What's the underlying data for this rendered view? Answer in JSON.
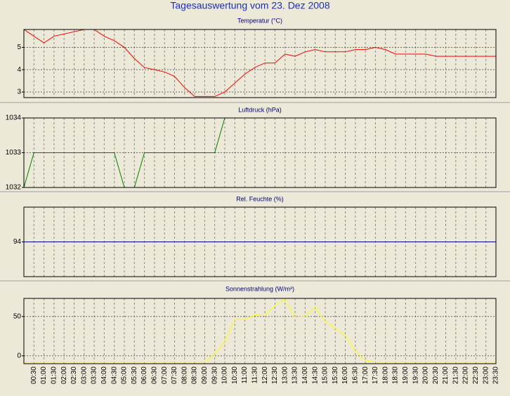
{
  "title": "Tagesauswertung vom 23. Dez 2008",
  "chart_data": [
    {
      "type": "line",
      "title": "Temperatur (°C)",
      "color": "#ff0000",
      "ylim": [
        2.75,
        5.8
      ],
      "yticks": [
        3,
        4,
        5
      ],
      "grid": true,
      "values": [
        5.8,
        5.5,
        5.2,
        5.5,
        5.6,
        5.7,
        5.8,
        5.8,
        5.5,
        5.3,
        5.0,
        4.5,
        4.1,
        4.0,
        3.9,
        3.7,
        3.2,
        2.8,
        2.8,
        2.8,
        3.0,
        3.4,
        3.8,
        4.1,
        4.3,
        4.3,
        4.7,
        4.6,
        4.8,
        4.9,
        4.8,
        4.8,
        4.8,
        4.9,
        4.9,
        5.0,
        4.9,
        4.7,
        4.7,
        4.7,
        4.7,
        4.6,
        4.6,
        4.6,
        4.6,
        4.6,
        4.6,
        4.6
      ]
    },
    {
      "type": "line",
      "title": "Luftdruck (hPa)",
      "color": "#008000",
      "ylim": [
        1032,
        1034
      ],
      "yticks": [
        1032,
        1033,
        1034
      ],
      "grid": true,
      "values": [
        1032,
        1033,
        1033,
        1033,
        1033,
        1033,
        1033,
        1033,
        1033,
        1033,
        1032,
        1032,
        1033,
        1033,
        1033,
        1033,
        1033,
        1033,
        1033,
        1033,
        1034,
        null,
        null,
        null,
        null,
        null,
        null,
        null,
        null,
        null,
        null,
        null,
        null,
        null,
        null,
        null,
        null,
        null,
        null,
        null,
        null,
        null,
        null,
        null,
        null,
        null,
        null,
        null
      ]
    },
    {
      "type": "line",
      "title": "Rel. Feuchte (%)",
      "color": "#00008b",
      "ylim": [
        93,
        95
      ],
      "yticks": [
        94
      ],
      "grid": true,
      "values": [
        94,
        94,
        94,
        94,
        94,
        94,
        94,
        94,
        94,
        94,
        94,
        94,
        94,
        94,
        94,
        94,
        94,
        94,
        94,
        94,
        94,
        94,
        94,
        94,
        94,
        94,
        94,
        94,
        94,
        94,
        94,
        94,
        94,
        94,
        94,
        94,
        94,
        94,
        94,
        94,
        94,
        94,
        94,
        94,
        94,
        94,
        94,
        94
      ]
    },
    {
      "type": "line",
      "title": "Sonnenstrahlung (W/m²)",
      "color": "#ffff00",
      "ylim": [
        -10,
        73
      ],
      "yticks": [
        0,
        50
      ],
      "grid": true,
      "categories": [
        null,
        "00:30",
        "01:00",
        "01:30",
        "02:00",
        "02:30",
        "03:00",
        "03:30",
        "04:00",
        "04:30",
        "05:00",
        "05:30",
        "06:00",
        "06:30",
        "07:00",
        "07:30",
        "08:00",
        "08:30",
        "09:00",
        "09:30",
        "10:00",
        "10:30",
        "11:00",
        "11:30",
        "12:00",
        "12:30",
        "13:00",
        "13:30",
        "14:00",
        "14:30",
        "15:00",
        "15:30",
        "16:00",
        "16:30",
        "17:00",
        "17:30",
        "18:00",
        "18:30",
        "19:00",
        "19:30",
        "20:00",
        "20:30",
        "21:00",
        "21:30",
        "22:00",
        "22:30",
        "23:00",
        "23:30"
      ],
      "values": [
        -8,
        -8,
        -8,
        -8,
        -8,
        -8,
        -8,
        -8,
        -8,
        -8,
        -8,
        -8,
        -8,
        -8,
        -8,
        -8,
        -8,
        -8,
        -8,
        2,
        18,
        46,
        46,
        52,
        51,
        64,
        72,
        49,
        50,
        62,
        44,
        35,
        26,
        6,
        -6,
        -8,
        -8,
        -8,
        -8,
        -8,
        -8,
        -8,
        -8,
        -8,
        -8,
        -8,
        -8,
        -8
      ]
    }
  ]
}
